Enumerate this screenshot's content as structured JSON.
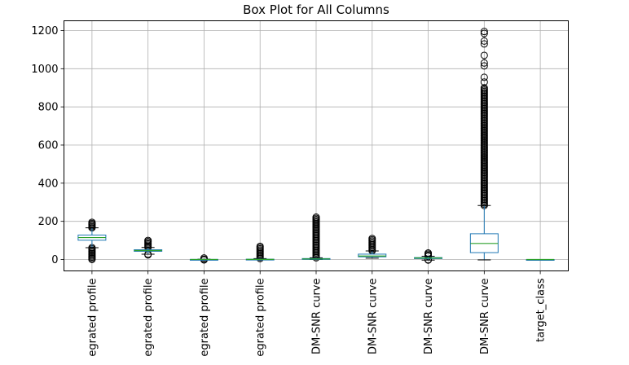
{
  "chart_data": {
    "type": "box",
    "title": "Box Plot for All Columns",
    "xlabel": "",
    "ylabel": "",
    "ylim": [
      -55,
      1235
    ],
    "yticks": [
      0,
      200,
      400,
      600,
      800,
      1000,
      1200
    ],
    "grid": true,
    "colors": {
      "box": "#1f77b4",
      "median": "#2ca02c",
      "whisker": "#000000",
      "flier": "#000000",
      "grid": "#b0b0b0"
    },
    "categories": [
      "egrated profile",
      "egrated profile",
      "egrated profile",
      "egrated profile",
      "DM-SNR curve",
      "DM-SNR curve",
      "DM-SNR curve",
      "DM-SNR curve",
      "target_class"
    ],
    "boxes": [
      {
        "whislo": 62,
        "q1": 101,
        "med": 115,
        "q3": 128,
        "whishi": 166,
        "fliers_low": [
          0,
          62
        ],
        "fliers_high": [
          166,
          195
        ]
      },
      {
        "whislo": 28,
        "q1": 43,
        "med": 47,
        "q3": 51,
        "whishi": 63,
        "fliers_low": [
          24,
          28
        ],
        "fliers_high": [
          63,
          100
        ]
      },
      {
        "whislo": -1,
        "q1": 0,
        "med": 0.2,
        "q3": 0.5,
        "whishi": 1.5,
        "fliers_low": [
          -2,
          -1
        ],
        "fliers_high": [
          1.5,
          8
        ]
      },
      {
        "whislo": -2,
        "q1": -0.2,
        "med": 0.6,
        "q3": 1.6,
        "whishi": 5,
        "fliers_low": [],
        "fliers_high": [
          5,
          69
        ]
      },
      {
        "whislo": 0,
        "q1": 2,
        "med": 3,
        "q3": 5,
        "whishi": 9,
        "fliers_low": [],
        "fliers_high": [
          9,
          222
        ]
      },
      {
        "whislo": 7,
        "q1": 14,
        "med": 18,
        "q3": 28,
        "whishi": 45,
        "fliers_low": [],
        "fliers_high": [
          45,
          110
        ]
      },
      {
        "whislo": -3,
        "q1": 5,
        "med": 8,
        "q3": 10,
        "whishi": 17,
        "fliers_low": [
          -3,
          -1
        ],
        "fliers_high": [
          17,
          34
        ]
      },
      {
        "whislo": -2,
        "q1": 36,
        "med": 84,
        "q3": 135,
        "whishi": 283,
        "fliers_low": [],
        "fliers_high": [
          283,
          900
        ],
        "fliers_extra": [
          930,
          955,
          1015,
          1030,
          1070,
          1130,
          1145,
          1185,
          1195
        ]
      },
      {
        "whislo": 0,
        "q1": 0,
        "med": 0,
        "q3": 0,
        "whishi": 0,
        "fliers_low": [],
        "fliers_high": [
          1
        ]
      }
    ]
  }
}
